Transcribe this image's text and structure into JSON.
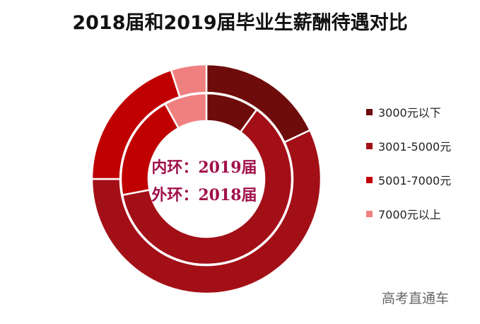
{
  "chart_data": {
    "type": "pie",
    "subtype": "donut",
    "title": "2018届和2019届毕业生薪酬待遇对比",
    "categories": [
      "3000元以下",
      "3001-5000元",
      "5001-7000元",
      "7000元以上"
    ],
    "colors": [
      "#6e0b0b",
      "#a30f17",
      "#c00000",
      "#f08080"
    ],
    "series": [
      {
        "name": "2019届",
        "ring": "inner",
        "values": [
          10,
          62,
          20,
          8
        ]
      },
      {
        "name": "2018届",
        "ring": "outer",
        "values": [
          18,
          57,
          20,
          5
        ]
      }
    ],
    "annotations": [
      "内环：2019届",
      "外环：2018届"
    ],
    "legend_position": "right"
  },
  "watermark": "高考直通车"
}
